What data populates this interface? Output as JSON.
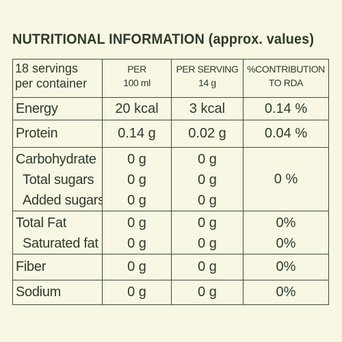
{
  "title": "NUTRITIONAL INFORMATION (approx. values)",
  "header": {
    "servings_line1": "18 servings",
    "servings_line2": "per container",
    "col_per_100_line1": "PER",
    "col_per_100_line2": "100 ml",
    "col_per_serving_line1": "PER SERVING",
    "col_per_serving_line2": "14 g",
    "col_rda_line1": "%CONTRIBUTION",
    "col_rda_line2": "TO RDA"
  },
  "rows": {
    "energy": {
      "label": "Energy",
      "per100": "20 kcal",
      "perServing": "3 kcal",
      "rda": "0.14 %"
    },
    "protein": {
      "label": "Protein",
      "per100": "0.14 g",
      "perServing": "0.02 g",
      "rda": "0.04 %"
    },
    "carbohydrate": {
      "label": "Carbohydrate",
      "per100": "0 g",
      "perServing": "0 g",
      "total_sugars_label": "Total sugars",
      "total_sugars_per100": "0 g",
      "total_sugars_perServing": "0 g",
      "added_sugars_label": "Added sugars",
      "added_sugars_per100": "0 g",
      "added_sugars_perServing": "0 g",
      "rda": "0 %"
    },
    "total_fat": {
      "label": "Total Fat",
      "per100": "0 g",
      "perServing": "0 g",
      "rda": "0%",
      "saturated_label": "Saturated fat",
      "saturated_per100": "0 g",
      "saturated_perServing": "0 g",
      "saturated_rda": "0%"
    },
    "fiber": {
      "label": "Fiber",
      "per100": "0 g",
      "perServing": "0 g",
      "rda": "0%"
    },
    "sodium": {
      "label": "Sodium",
      "per100": "0 g",
      "perServing": "0 g",
      "rda": "0%"
    }
  }
}
